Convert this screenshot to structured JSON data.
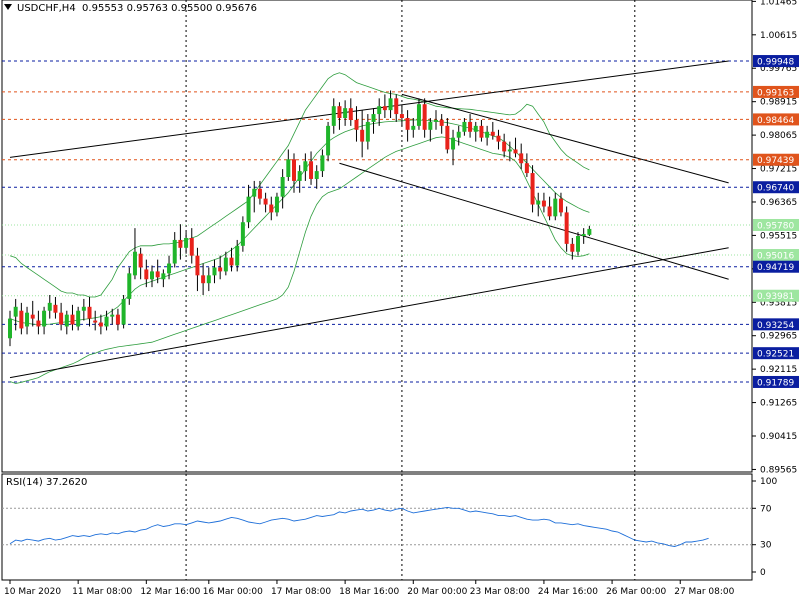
{
  "header": {
    "symbol": "USDCHF,H4",
    "ohlc": "0.95553 0.95763 0.95500 0.95676"
  },
  "rsi": {
    "label": "RSI(14) 37.2620",
    "levels": [
      100,
      70,
      30,
      0
    ],
    "values": [
      31,
      35,
      34,
      36,
      35,
      34,
      36,
      37,
      35,
      36,
      38,
      40,
      39,
      40,
      39,
      41,
      42,
      41,
      43,
      42,
      44,
      45,
      44,
      46,
      47,
      50,
      52,
      50,
      51,
      53,
      53,
      52,
      54,
      56,
      55,
      54,
      55,
      56,
      58,
      60,
      59,
      57,
      55,
      54,
      53,
      55,
      57,
      58,
      59,
      58,
      56,
      57,
      58,
      60,
      62,
      61,
      62,
      63,
      66,
      65,
      67,
      68,
      69,
      67,
      68,
      70,
      68,
      67,
      69,
      70,
      67,
      65,
      66,
      67,
      68,
      69,
      70,
      71,
      70,
      70,
      68,
      66,
      67,
      66,
      65,
      64,
      62,
      62,
      61,
      62,
      60,
      58,
      57,
      57,
      58,
      57,
      54,
      54,
      53,
      52,
      53,
      51,
      50,
      49,
      48,
      47,
      45,
      44,
      41,
      38,
      35,
      34,
      33,
      34,
      32,
      31,
      29,
      28,
      30,
      33,
      33,
      34,
      35,
      37
    ]
  },
  "chart_data": {
    "type": "candlestick",
    "symbol": "USDCHF",
    "timeframe": "H4",
    "ylim": [
      0.895,
      1.015
    ],
    "y_ticks": [
      "1.01465",
      "1.00615",
      "0.99765",
      "0.98915",
      "0.98065",
      "0.97215",
      "0.96365",
      "0.95515",
      "0.94665",
      "0.93815",
      "0.92965",
      "0.92115",
      "0.91265",
      "0.90415",
      "0.89565"
    ],
    "x_ticks": [
      "10 Mar 2020",
      "11 Mar 08:00",
      "12 Mar 16:00",
      "16 Mar 00:00",
      "17 Mar 08:00",
      "18 Mar 16:00",
      "20 Mar 00:00",
      "23 Mar 08:00",
      "24 Mar 16:00",
      "26 Mar 00:00",
      "27 Mar 08:00"
    ],
    "price_lines": [
      {
        "price": 0.99948,
        "label": "0.99948",
        "color": "#0a1ea0",
        "style": "dashed"
      },
      {
        "price": 0.99163,
        "label": "0.99163",
        "color": "#e0541c",
        "style": "dashed"
      },
      {
        "price": 0.98464,
        "label": "0.98464",
        "color": "#e0541c",
        "style": "dashed"
      },
      {
        "price": 0.97439,
        "label": "0.97439",
        "color": "#e0541c",
        "style": "dashed"
      },
      {
        "price": 0.9674,
        "label": "0.96740",
        "color": "#0a1ea0",
        "style": "dashed"
      },
      {
        "price": 0.9578,
        "label": "0.95780",
        "color": "#9ee6a0",
        "style": "dotted"
      },
      {
        "price": 0.95016,
        "label": "0.95016",
        "color": "#9ee6a0",
        "style": "dotted"
      },
      {
        "price": 0.94719,
        "label": "0.94719",
        "color": "#0a1ea0",
        "style": "dashed"
      },
      {
        "price": 0.93981,
        "label": "0.93981",
        "color": "#9ee6a0",
        "style": "dotted"
      },
      {
        "price": 0.93254,
        "label": "0.93254",
        "color": "#0a1ea0",
        "style": "dashed"
      },
      {
        "price": 0.92521,
        "label": "0.92521",
        "color": "#0a1ea0",
        "style": "dashed"
      },
      {
        "price": 0.91789,
        "label": "0.91789",
        "color": "#0a1ea0",
        "style": "dashed"
      }
    ],
    "candles": [
      [
        0.929,
        0.936,
        0.927,
        0.934
      ],
      [
        0.9345,
        0.939,
        0.931,
        0.937
      ],
      [
        0.936,
        0.938,
        0.93,
        0.9315
      ],
      [
        0.932,
        0.937,
        0.93,
        0.9355
      ],
      [
        0.935,
        0.9385,
        0.932,
        0.934
      ],
      [
        0.9335,
        0.936,
        0.93,
        0.932
      ],
      [
        0.932,
        0.937,
        0.93,
        0.936
      ],
      [
        0.936,
        0.94,
        0.934,
        0.938
      ],
      [
        0.9375,
        0.9395,
        0.934,
        0.9355
      ],
      [
        0.9355,
        0.938,
        0.931,
        0.9325
      ],
      [
        0.932,
        0.936,
        0.93,
        0.935
      ],
      [
        0.935,
        0.9375,
        0.931,
        0.9325
      ],
      [
        0.932,
        0.937,
        0.931,
        0.936
      ],
      [
        0.936,
        0.939,
        0.9335,
        0.937
      ],
      [
        0.937,
        0.9395,
        0.932,
        0.934
      ],
      [
        0.9335,
        0.936,
        0.931,
        0.933
      ],
      [
        0.933,
        0.935,
        0.93,
        0.932
      ],
      [
        0.932,
        0.936,
        0.931,
        0.9345
      ],
      [
        0.9345,
        0.9365,
        0.9325,
        0.935
      ],
      [
        0.935,
        0.9365,
        0.931,
        0.9325
      ],
      [
        0.9325,
        0.94,
        0.9315,
        0.939
      ],
      [
        0.939,
        0.947,
        0.9375,
        0.9455
      ],
      [
        0.945,
        0.957,
        0.944,
        0.951
      ],
      [
        0.9505,
        0.952,
        0.944,
        0.947
      ],
      [
        0.9465,
        0.949,
        0.942,
        0.944
      ],
      [
        0.944,
        0.9475,
        0.942,
        0.946
      ],
      [
        0.946,
        0.949,
        0.943,
        0.9445
      ],
      [
        0.944,
        0.9465,
        0.942,
        0.9455
      ],
      [
        0.9455,
        0.95,
        0.944,
        0.948
      ],
      [
        0.948,
        0.956,
        0.947,
        0.954
      ],
      [
        0.954,
        0.958,
        0.949,
        0.952
      ],
      [
        0.952,
        0.956,
        0.9505,
        0.9545
      ],
      [
        0.9545,
        0.957,
        0.948,
        0.95
      ],
      [
        0.95,
        0.952,
        0.941,
        0.945
      ],
      [
        0.945,
        0.948,
        0.94,
        0.943
      ],
      [
        0.943,
        0.947,
        0.941,
        0.945
      ],
      [
        0.945,
        0.949,
        0.943,
        0.947
      ],
      [
        0.947,
        0.95,
        0.944,
        0.946
      ],
      [
        0.946,
        0.951,
        0.945,
        0.9495
      ],
      [
        0.9495,
        0.952,
        0.946,
        0.9475
      ],
      [
        0.9475,
        0.954,
        0.946,
        0.9525
      ],
      [
        0.9525,
        0.96,
        0.951,
        0.9585
      ],
      [
        0.9585,
        0.968,
        0.957,
        0.965
      ],
      [
        0.965,
        0.969,
        0.961,
        0.967
      ],
      [
        0.967,
        0.969,
        0.963,
        0.9645
      ],
      [
        0.9645,
        0.966,
        0.961,
        0.963
      ],
      [
        0.963,
        0.965,
        0.959,
        0.961
      ],
      [
        0.961,
        0.966,
        0.96,
        0.965
      ],
      [
        0.965,
        0.972,
        0.962,
        0.97
      ],
      [
        0.97,
        0.977,
        0.969,
        0.9745
      ],
      [
        0.9745,
        0.976,
        0.966,
        0.969
      ],
      [
        0.969,
        0.973,
        0.966,
        0.9715
      ],
      [
        0.9715,
        0.976,
        0.969,
        0.974
      ],
      [
        0.974,
        0.9765,
        0.968,
        0.9695
      ],
      [
        0.9695,
        0.973,
        0.967,
        0.9715
      ],
      [
        0.9715,
        0.977,
        0.97,
        0.9755
      ],
      [
        0.9755,
        0.984,
        0.974,
        0.983
      ],
      [
        0.983,
        0.99,
        0.981,
        0.988
      ],
      [
        0.988,
        0.989,
        0.982,
        0.985
      ],
      [
        0.985,
        0.9895,
        0.983,
        0.9875
      ],
      [
        0.9875,
        0.99,
        0.983,
        0.9845
      ],
      [
        0.9845,
        0.988,
        0.979,
        0.982
      ],
      [
        0.982,
        0.987,
        0.975,
        0.979
      ],
      [
        0.979,
        0.986,
        0.977,
        0.984
      ],
      [
        0.984,
        0.9875,
        0.981,
        0.986
      ],
      [
        0.986,
        0.99,
        0.983,
        0.988
      ],
      [
        0.988,
        0.991,
        0.985,
        0.987
      ],
      [
        0.987,
        0.992,
        0.985,
        0.99
      ],
      [
        0.99,
        0.991,
        0.984,
        0.986
      ],
      [
        0.986,
        0.988,
        0.983,
        0.985
      ],
      [
        0.985,
        0.987,
        0.979,
        0.982
      ],
      [
        0.982,
        0.985,
        0.98,
        0.983
      ],
      [
        0.983,
        0.99,
        0.982,
        0.9885
      ],
      [
        0.9885,
        0.99,
        0.98,
        0.982
      ],
      [
        0.982,
        0.985,
        0.979,
        0.984
      ],
      [
        0.984,
        0.987,
        0.982,
        0.9845
      ],
      [
        0.9845,
        0.986,
        0.981,
        0.983
      ],
      [
        0.983,
        0.985,
        0.976,
        0.977
      ],
      [
        0.977,
        0.982,
        0.973,
        0.98
      ],
      [
        0.98,
        0.983,
        0.978,
        0.9815
      ],
      [
        0.9815,
        0.985,
        0.9805,
        0.984
      ],
      [
        0.984,
        0.986,
        0.98,
        0.9815
      ],
      [
        0.9815,
        0.984,
        0.979,
        0.983
      ],
      [
        0.983,
        0.9845,
        0.979,
        0.98
      ],
      [
        0.98,
        0.983,
        0.978,
        0.9815
      ],
      [
        0.9815,
        0.984,
        0.9795,
        0.9805
      ],
      [
        0.9805,
        0.982,
        0.977,
        0.979
      ],
      [
        0.979,
        0.981,
        0.975,
        0.9765
      ],
      [
        0.9765,
        0.979,
        0.974,
        0.977
      ],
      [
        0.977,
        0.98,
        0.975,
        0.976
      ],
      [
        0.976,
        0.9785,
        0.972,
        0.9735
      ],
      [
        0.9735,
        0.976,
        0.97,
        0.971
      ],
      [
        0.971,
        0.973,
        0.961,
        0.963
      ],
      [
        0.963,
        0.966,
        0.96,
        0.964
      ],
      [
        0.964,
        0.966,
        0.961,
        0.9625
      ],
      [
        0.9625,
        0.965,
        0.959,
        0.96
      ],
      [
        0.96,
        0.966,
        0.959,
        0.9645
      ],
      [
        0.9645,
        0.966,
        0.96,
        0.961
      ],
      [
        0.961,
        0.9625,
        0.951,
        0.953
      ],
      [
        0.953,
        0.9545,
        0.949,
        0.951
      ],
      [
        0.951,
        0.956,
        0.95,
        0.955
      ],
      [
        0.955,
        0.957,
        0.953,
        0.9555
      ],
      [
        0.9553,
        0.9576,
        0.955,
        0.9568
      ]
    ],
    "bollinger": {
      "upper": [
        0.95,
        0.9495,
        0.948,
        0.947,
        0.946,
        0.945,
        0.944,
        0.943,
        0.942,
        0.941,
        0.9405,
        0.9405,
        0.94,
        0.94,
        0.9395,
        0.9395,
        0.94,
        0.942,
        0.944,
        0.947,
        0.949,
        0.951,
        0.952,
        0.9525,
        0.9525,
        0.9525,
        0.9528,
        0.953,
        0.953,
        0.9532,
        0.9535,
        0.954,
        0.9545,
        0.955,
        0.956,
        0.957,
        0.958,
        0.959,
        0.96,
        0.961,
        0.962,
        0.963,
        0.964,
        0.966,
        0.968,
        0.97,
        0.972,
        0.974,
        0.976,
        0.978,
        0.981,
        0.984,
        0.987,
        0.989,
        0.991,
        0.993,
        0.995,
        0.996,
        0.9965,
        0.996,
        0.995,
        0.994,
        0.9935,
        0.993,
        0.9925,
        0.992,
        0.9915,
        0.9912,
        0.991,
        0.9905,
        0.99,
        0.9898,
        0.9895,
        0.989,
        0.9885,
        0.988,
        0.9878,
        0.9876,
        0.9875,
        0.9874,
        0.9873,
        0.9872,
        0.987,
        0.9868,
        0.9866,
        0.9864,
        0.9862,
        0.986,
        0.9858,
        0.986,
        0.987,
        0.9885,
        0.988,
        0.986,
        0.984,
        0.981,
        0.979,
        0.977,
        0.9755,
        0.9745,
        0.9735,
        0.9725,
        0.9718
      ],
      "middle": [
        0.934,
        0.9335,
        0.933,
        0.9328,
        0.9326,
        0.9325,
        0.9325,
        0.9326,
        0.9328,
        0.933,
        0.9332,
        0.9334,
        0.9336,
        0.9338,
        0.934,
        0.9342,
        0.9345,
        0.935,
        0.936,
        0.937,
        0.9385,
        0.94,
        0.9415,
        0.9425,
        0.943,
        0.9435,
        0.944,
        0.9445,
        0.945,
        0.9455,
        0.946,
        0.9465,
        0.947,
        0.9475,
        0.948,
        0.9485,
        0.949,
        0.9495,
        0.9505,
        0.9515,
        0.9525,
        0.954,
        0.9555,
        0.957,
        0.9585,
        0.96,
        0.9615,
        0.963,
        0.9645,
        0.966,
        0.968,
        0.97,
        0.972,
        0.974,
        0.976,
        0.9775,
        0.979,
        0.98,
        0.9808,
        0.9815,
        0.982,
        0.9825,
        0.983,
        0.9833,
        0.9836,
        0.9838,
        0.984,
        0.9841,
        0.9842,
        0.9843,
        0.9844,
        0.9845,
        0.9845,
        0.9844,
        0.9843,
        0.9842,
        0.984,
        0.9838,
        0.9835,
        0.9832,
        0.9828,
        0.9824,
        0.982,
        0.9815,
        0.981,
        0.9805,
        0.98,
        0.979,
        0.9778,
        0.9765,
        0.975,
        0.9735,
        0.972,
        0.9705,
        0.969,
        0.9675,
        0.966,
        0.9648,
        0.9638,
        0.963,
        0.9622,
        0.9615,
        0.961
      ],
      "lower": [
        0.918,
        0.9175,
        0.9178,
        0.9182,
        0.9186,
        0.919,
        0.9198,
        0.9205,
        0.921,
        0.9215,
        0.922,
        0.9225,
        0.9232,
        0.924,
        0.9248,
        0.9252,
        0.9258,
        0.9262,
        0.9265,
        0.9268,
        0.927,
        0.9272,
        0.9274,
        0.9276,
        0.9278,
        0.928,
        0.9285,
        0.929,
        0.9295,
        0.93,
        0.9305,
        0.931,
        0.9315,
        0.932,
        0.9325,
        0.933,
        0.9335,
        0.934,
        0.9345,
        0.935,
        0.9355,
        0.936,
        0.9365,
        0.937,
        0.9375,
        0.938,
        0.9385,
        0.939,
        0.94,
        0.942,
        0.946,
        0.951,
        0.956,
        0.96,
        0.963,
        0.965,
        0.966,
        0.9665,
        0.967,
        0.968,
        0.969,
        0.97,
        0.971,
        0.972,
        0.973,
        0.974,
        0.975,
        0.9758,
        0.9765,
        0.977,
        0.9775,
        0.978,
        0.9785,
        0.979,
        0.9795,
        0.98,
        0.9802,
        0.98,
        0.9795,
        0.979,
        0.9785,
        0.978,
        0.9775,
        0.977,
        0.9765,
        0.976,
        0.9758,
        0.9755,
        0.975,
        0.974,
        0.972,
        0.969,
        0.966,
        0.963,
        0.96,
        0.957,
        0.954,
        0.952,
        0.9505,
        0.95,
        0.9498,
        0.95,
        0.9505
      ]
    },
    "trendlines": [
      {
        "from": [
          0,
          0.975
        ],
        "to": [
          123,
          0.9995
        ]
      },
      {
        "from": [
          0,
          0.919
        ],
        "to": [
          123,
          0.952
        ]
      },
      {
        "from": [
          58,
          0.9735
        ],
        "to": [
          123,
          0.944
        ]
      },
      {
        "from": [
          69,
          0.991
        ],
        "to": [
          123,
          0.9685
        ]
      }
    ],
    "time_separators": [
      31,
      69,
      110
    ]
  }
}
